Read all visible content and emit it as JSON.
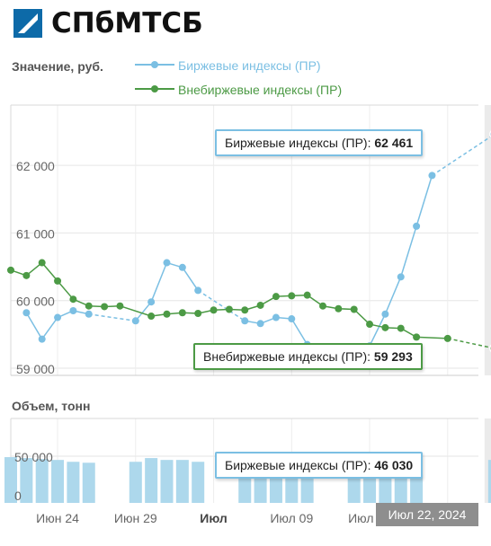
{
  "brand": {
    "name": "СПбМТСБ"
  },
  "main_chart": {
    "ylabel": "Значение, руб.",
    "legend": [
      {
        "name": "Биржевые индексы (ПР)",
        "color": "#7bbfe3"
      },
      {
        "name": "Внебиржевые индексы (ПР)",
        "color": "#4c9a45"
      }
    ],
    "y_ticks": [
      "59 000",
      "60 000",
      "61 000",
      "62 000"
    ],
    "tooltips": {
      "exchange": {
        "label": "Биржевые индексы (ПР):",
        "value": "62 461"
      },
      "otc": {
        "label": "Внебиржевые индексы (ПР):",
        "value": "59 293"
      }
    }
  },
  "volume_chart": {
    "ylabel": "Объем, тонн",
    "y_ticks": [
      "0",
      "50 000"
    ],
    "tooltip": {
      "label": "Биржевые индексы (ПР):",
      "value": "46 030"
    }
  },
  "x_axis": {
    "tick_labels": [
      "Июн 24",
      "Июн 29",
      "Июл",
      "Июл 09",
      "Июл 14"
    ],
    "crosshair_label": "Июл 22, 2024"
  },
  "chart_data": [
    {
      "type": "line",
      "title": "",
      "ylabel": "Значение, руб.",
      "ylim": [
        58900,
        62700
      ],
      "x_range": [
        "2024-06-21",
        "2024-07-22"
      ],
      "grid": true,
      "legend_position": "top",
      "series": [
        {
          "name": "Биржевые индексы (ПР)",
          "color": "#7bbfe3",
          "points": [
            {
              "x": "2024-06-22",
              "y": 59820
            },
            {
              "x": "2024-06-23",
              "y": 59430
            },
            {
              "x": "2024-06-24",
              "y": 59750
            },
            {
              "x": "2024-06-25",
              "y": 59850
            },
            {
              "x": "2024-06-26",
              "y": 59800
            },
            {
              "x": "2024-06-29",
              "y": 59700
            },
            {
              "x": "2024-06-30",
              "y": 59980
            },
            {
              "x": "2024-07-01",
              "y": 60560
            },
            {
              "x": "2024-07-02",
              "y": 60490
            },
            {
              "x": "2024-07-03",
              "y": 60150
            },
            {
              "x": "2024-07-06",
              "y": 59700
            },
            {
              "x": "2024-07-07",
              "y": 59660
            },
            {
              "x": "2024-07-08",
              "y": 59750
            },
            {
              "x": "2024-07-09",
              "y": 59730
            },
            {
              "x": "2024-07-10",
              "y": 59350
            },
            {
              "x": "2024-07-14",
              "y": 59330
            },
            {
              "x": "2024-07-15",
              "y": 59800
            },
            {
              "x": "2024-07-16",
              "y": 60350
            },
            {
              "x": "2024-07-17",
              "y": 61100
            },
            {
              "x": "2024-07-18",
              "y": 61850
            },
            {
              "x": "2024-07-22",
              "y": 62461
            }
          ]
        },
        {
          "name": "Внебиржевые индексы (ПР)",
          "color": "#4c9a45",
          "points": [
            {
              "x": "2024-06-21",
              "y": 60450
            },
            {
              "x": "2024-06-22",
              "y": 60370
            },
            {
              "x": "2024-06-23",
              "y": 60560
            },
            {
              "x": "2024-06-24",
              "y": 60290
            },
            {
              "x": "2024-06-25",
              "y": 60020
            },
            {
              "x": "2024-06-26",
              "y": 59920
            },
            {
              "x": "2024-06-27",
              "y": 59910
            },
            {
              "x": "2024-06-28",
              "y": 59920
            },
            {
              "x": "2024-06-30",
              "y": 59770
            },
            {
              "x": "2024-07-01",
              "y": 59800
            },
            {
              "x": "2024-07-02",
              "y": 59820
            },
            {
              "x": "2024-07-03",
              "y": 59810
            },
            {
              "x": "2024-07-04",
              "y": 59860
            },
            {
              "x": "2024-07-05",
              "y": 59870
            },
            {
              "x": "2024-07-06",
              "y": 59860
            },
            {
              "x": "2024-07-07",
              "y": 59930
            },
            {
              "x": "2024-07-08",
              "y": 60060
            },
            {
              "x": "2024-07-09",
              "y": 60070
            },
            {
              "x": "2024-07-10",
              "y": 60080
            },
            {
              "x": "2024-07-11",
              "y": 59920
            },
            {
              "x": "2024-07-12",
              "y": 59880
            },
            {
              "x": "2024-07-13",
              "y": 59870
            },
            {
              "x": "2024-07-14",
              "y": 59650
            },
            {
              "x": "2024-07-15",
              "y": 59600
            },
            {
              "x": "2024-07-16",
              "y": 59590
            },
            {
              "x": "2024-07-17",
              "y": 59460
            },
            {
              "x": "2024-07-19",
              "y": 59440
            },
            {
              "x": "2024-07-22",
              "y": 59293
            }
          ]
        }
      ]
    },
    {
      "type": "bar",
      "title": "",
      "ylabel": "Объем, тонн",
      "ylim": [
        0,
        80000
      ],
      "grid": true,
      "series": [
        {
          "name": "Биржевые индексы (ПР)",
          "color": "#add8ec",
          "points": [
            {
              "x": "2024-06-21",
              "y": 49000
            },
            {
              "x": "2024-06-22",
              "y": 48000
            },
            {
              "x": "2024-06-23",
              "y": 47000
            },
            {
              "x": "2024-06-24",
              "y": 46000
            },
            {
              "x": "2024-06-25",
              "y": 44000
            },
            {
              "x": "2024-06-26",
              "y": 43000
            },
            {
              "x": "2024-06-29",
              "y": 44000
            },
            {
              "x": "2024-06-30",
              "y": 48000
            },
            {
              "x": "2024-07-01",
              "y": 46000
            },
            {
              "x": "2024-07-02",
              "y": 46000
            },
            {
              "x": "2024-07-03",
              "y": 44000
            },
            {
              "x": "2024-07-06",
              "y": 30000
            },
            {
              "x": "2024-07-07",
              "y": 30000
            },
            {
              "x": "2024-07-08",
              "y": 30000
            },
            {
              "x": "2024-07-09",
              "y": 30000
            },
            {
              "x": "2024-07-10",
              "y": 30000
            },
            {
              "x": "2024-07-13",
              "y": 30000
            },
            {
              "x": "2024-07-14",
              "y": 30000
            },
            {
              "x": "2024-07-15",
              "y": 30000
            },
            {
              "x": "2024-07-16",
              "y": 30000
            },
            {
              "x": "2024-07-17",
              "y": 30000
            },
            {
              "x": "2024-07-22",
              "y": 46030
            }
          ]
        }
      ]
    }
  ]
}
